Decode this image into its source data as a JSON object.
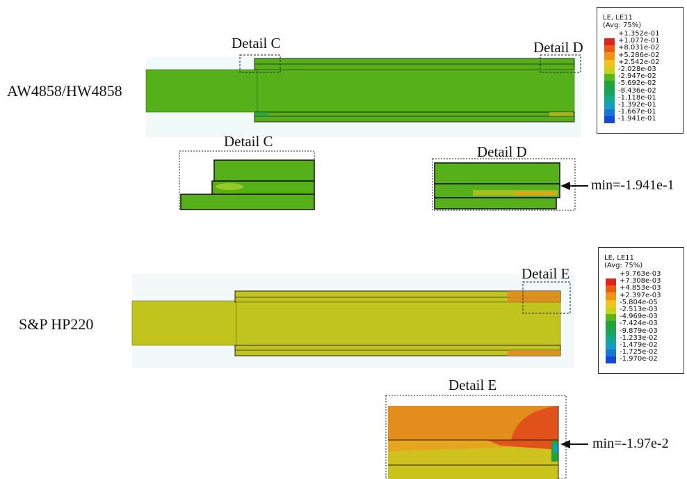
{
  "specimen1": {
    "label": "AW4858/HW4858",
    "detail_c_caption": "Detail C",
    "detail_d_caption": "Detail D",
    "detail_c_zoom_caption": "Detail C",
    "detail_d_zoom_caption": "Detail D",
    "min_label": "min=-1.941e-1",
    "legend": {
      "title_line1": "LE, LE11",
      "title_line2": "(Avg: 75%)",
      "values": [
        "+1.352e-01",
        "+1.077e-01",
        "+8.031e-02",
        "+5.286e-02",
        "+2.542e-02",
        "-2.028e-03",
        "-2.947e-02",
        "-5.692e-02",
        "-8.436e-02",
        "-1.118e-01",
        "-1.392e-01",
        "-1.667e-01",
        "-1.941e-01"
      ]
    }
  },
  "specimen2": {
    "label": "S&P HP220",
    "detail_e_caption": "Detail E",
    "detail_e_zoom_caption": "Detail E",
    "min_label": "min=-1.97e-2",
    "legend": {
      "title_line1": "LE, LE11",
      "title_line2": "(Avg: 75%)",
      "values": [
        "+9.763e-03",
        "+7.308e-03",
        "+4.853e-03",
        "+2.397e-03",
        "-5.804e-05",
        "-2.513e-03",
        "-4.969e-03",
        "-7.424e-03",
        "-9.879e-03",
        "-1.233e-02",
        "-1.479e-02",
        "-1.725e-02",
        "-1.970e-02"
      ]
    }
  },
  "colors": {
    "contour_scale": [
      "#e0231a",
      "#ee5a14",
      "#f39214",
      "#f5c11c",
      "#c8d318",
      "#58b51a",
      "#1ea63a",
      "#16a35a",
      "#12a98b",
      "#139fc3",
      "#1578d6",
      "#1647d6",
      "#1820c8"
    ],
    "green_member": "#55b01a",
    "olive_member": "#c1c41c",
    "orange_zone": "#e08a1c"
  }
}
